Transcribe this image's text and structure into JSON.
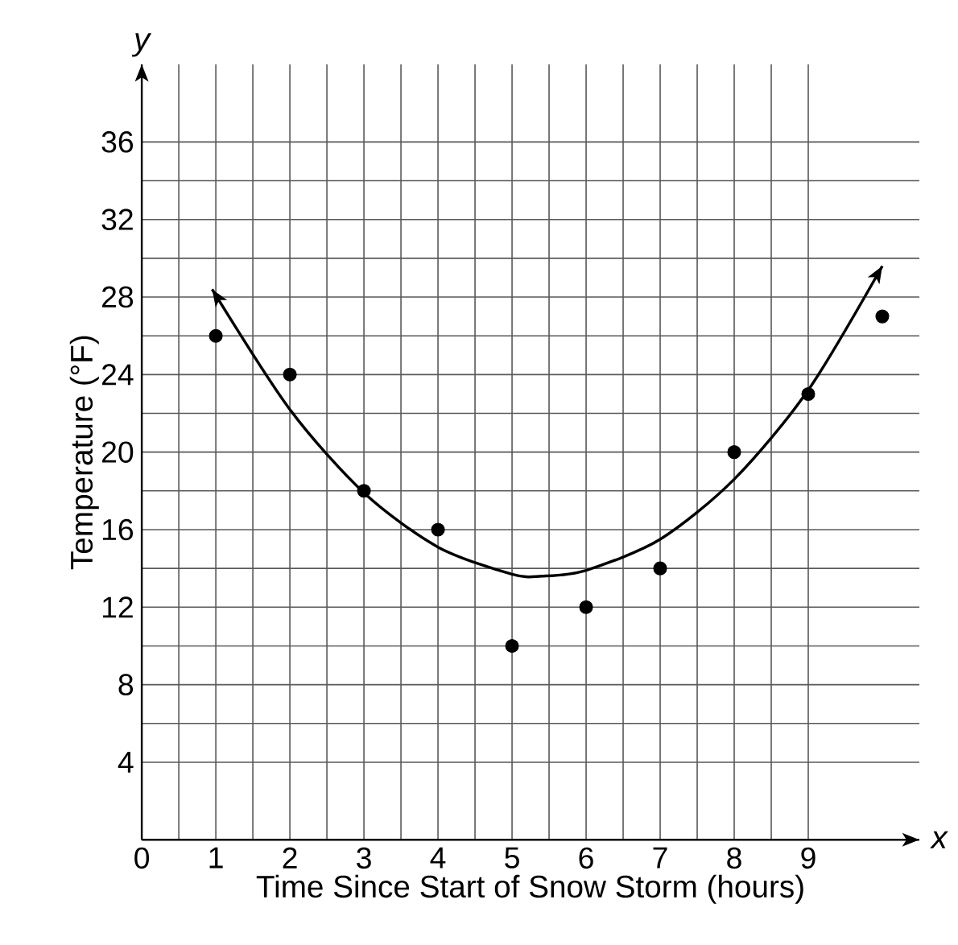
{
  "chart_data": {
    "type": "scatter",
    "xlabel": "Time Since Start of Snow Storm (hours)",
    "ylabel": "Temperature (°F)",
    "annotations": [
      "x",
      "y"
    ],
    "series": [
      {
        "color": "#000000",
        "marker": "circle",
        "x": [
          1,
          2,
          3,
          4,
          5,
          6,
          7,
          8,
          9,
          10
        ],
        "values": [
          26,
          24,
          18,
          16,
          10,
          12,
          14,
          20,
          23,
          27
        ]
      },
      {
        "type": "line",
        "color": "#000000",
        "line_style": "solid",
        "marker": "none",
        "x": [
          0.95,
          2,
          3,
          4,
          5,
          5.4,
          6,
          7,
          8,
          9,
          10
        ],
        "values": [
          28.4,
          22.2,
          17.9,
          15.1,
          13.7,
          13.6,
          13.9,
          15.5,
          18.6,
          23.2,
          29.6
        ]
      }
    ],
    "xlim": [
      0,
      10.5
    ],
    "ylim": [
      0,
      40
    ],
    "xticks": [
      0,
      1,
      2,
      3,
      4,
      5,
      6,
      7,
      8,
      9
    ],
    "yticks": [
      4,
      8,
      12,
      16,
      20,
      24,
      28,
      32,
      36
    ],
    "grid": true
  }
}
